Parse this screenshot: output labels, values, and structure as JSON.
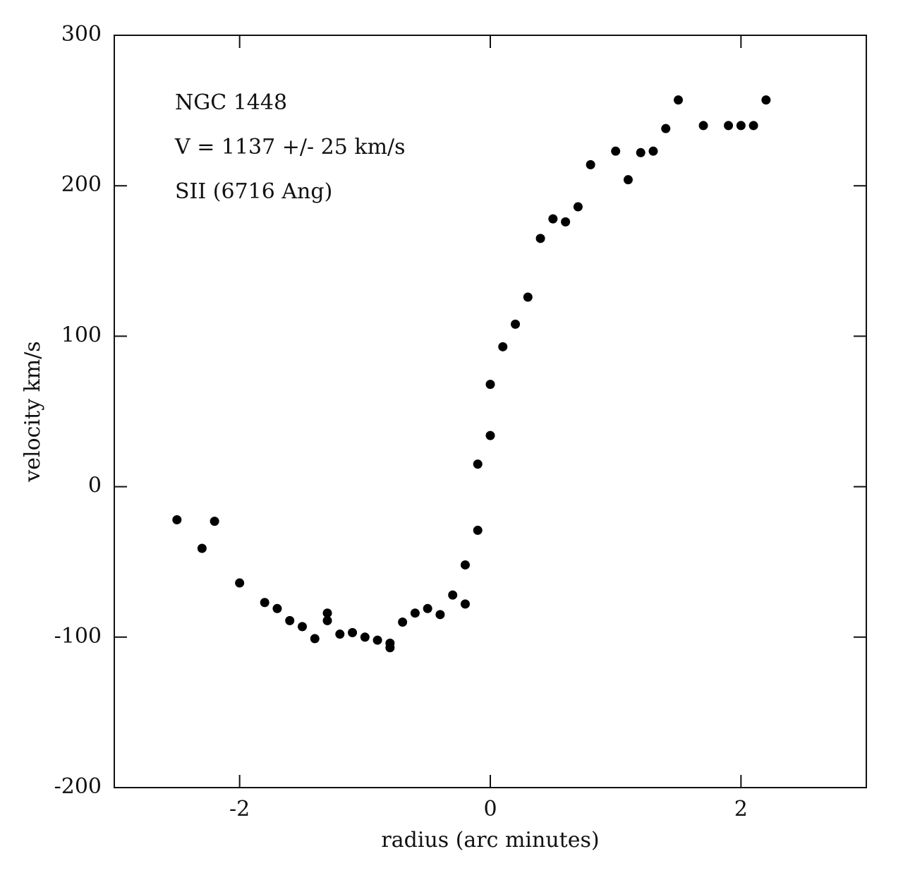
{
  "chart_data": {
    "type": "scatter",
    "annotations": [
      "NGC 1448",
      "V = 1137 +/- 25 km/s",
      "SII (6716 Ang)"
    ],
    "x_label": "radius (arc minutes)",
    "y_label": "velocity km/s",
    "color": "#000000",
    "xlim": [
      -3,
      3
    ],
    "xticks": [
      -2,
      0,
      2
    ],
    "ylim": [
      -200,
      300
    ],
    "yticks": [
      -200,
      -100,
      0,
      100,
      200,
      300
    ],
    "x": [
      -2.5,
      -2.3,
      -2.2,
      -2.0,
      -1.8,
      -1.7,
      -1.6,
      -1.5,
      -1.4,
      -1.3,
      -1.3,
      -1.2,
      -1.1,
      -1.0,
      -0.9,
      -0.8,
      -0.8,
      -0.7,
      -0.6,
      -0.5,
      -0.4,
      -0.3,
      -0.2,
      -0.2,
      -0.1,
      -0.1,
      0.0,
      0.0,
      0.1,
      0.2,
      0.3,
      0.4,
      0.5,
      0.6,
      0.7,
      0.8,
      1.0,
      1.1,
      1.2,
      1.3,
      1.4,
      1.5,
      1.7,
      1.9,
      2.0,
      2.1,
      2.2
    ],
    "values": [
      -22,
      -41,
      -23,
      -64,
      -77,
      -81,
      -89,
      -93,
      -101,
      -84,
      -89,
      -98,
      -97,
      -100,
      -102,
      -104,
      -107,
      -90,
      -84,
      -81,
      -85,
      -72,
      -78,
      -52,
      -29,
      15,
      34,
      68,
      93,
      108,
      126,
      165,
      178,
      176,
      186,
      214,
      223,
      204,
      222,
      223,
      238,
      257,
      240,
      240,
      240,
      240,
      257
    ]
  }
}
